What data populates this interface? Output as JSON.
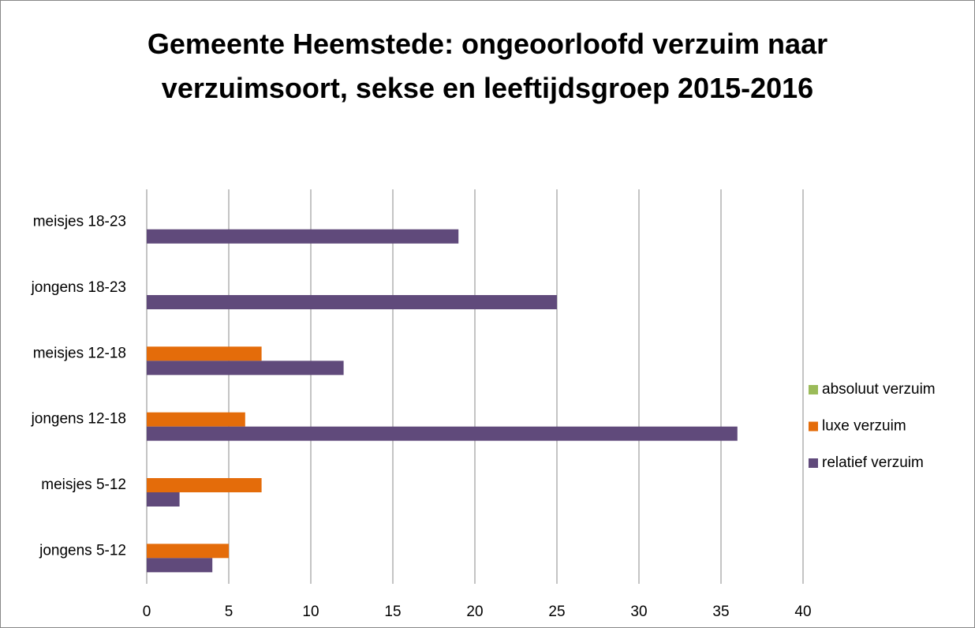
{
  "chart_data": {
    "type": "barh",
    "title": "Gemeente Heemstede: ongeoorloofd verzuim naar verzuimsoort, sekse en leeftijdsgroep 2015-2016",
    "categories": [
      "jongens 5-12",
      "meisjes 5-12",
      "jongens 12-18",
      "meisjes 12-18",
      "jongens 18-23",
      "meisjes 18-23"
    ],
    "series": [
      {
        "name": "absoluut verzuim",
        "color": "#9bbb59",
        "values": [
          0,
          0,
          0,
          0,
          0,
          0
        ]
      },
      {
        "name": "luxe verzuim",
        "color": "#e46c0a",
        "values": [
          5,
          7,
          6,
          7,
          0,
          0
        ]
      },
      {
        "name": "relatief verzuim",
        "color": "#604a7b",
        "values": [
          4,
          2,
          36,
          12,
          25,
          19
        ]
      }
    ],
    "xlim": [
      0,
      40
    ],
    "xticks": [
      0,
      5,
      10,
      15,
      20,
      25,
      30,
      35,
      40
    ],
    "grid": true,
    "legend": "right"
  }
}
